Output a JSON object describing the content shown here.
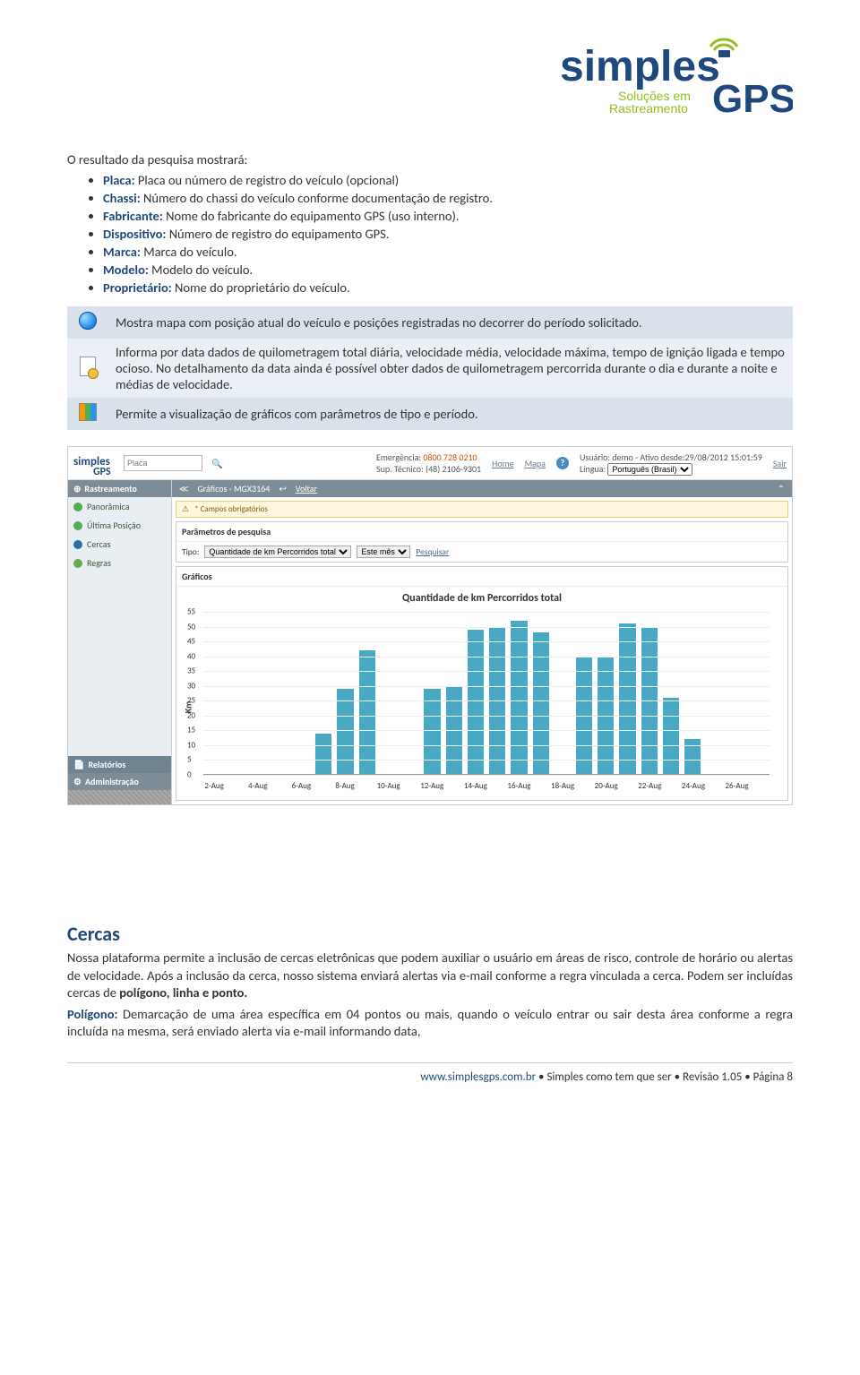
{
  "logo": {
    "brand_main": "simples",
    "brand_sub": "GPS",
    "tagline1": "Soluções em",
    "tagline2": "Rastreamento",
    "color_blue": "#1f497d",
    "color_green": "#93c01f"
  },
  "intro": "O resultado da pesquisa mostrará:",
  "defs": [
    {
      "term": "Placa:",
      "desc": " Placa ou número de registro do veículo (opcional)"
    },
    {
      "term": "Chassi:",
      "desc": " Número do chassi do veículo conforme documentação de registro."
    },
    {
      "term": "Fabricante:",
      "desc": " Nome do fabricante do equipamento GPS (uso interno)."
    },
    {
      "term": "Dispositivo:",
      "desc": " Número de registro do equipamento GPS."
    },
    {
      "term": "Marca:",
      "desc": " Marca do veículo."
    },
    {
      "term": "Modelo:",
      "desc": " Modelo do veículo."
    },
    {
      "term": "Proprietário:",
      "desc": " Nome do proprietário do veículo."
    }
  ],
  "icon_rows": [
    {
      "text": "Mostra mapa com posição atual do veículo e posições registradas no decorrer do período solicitado."
    },
    {
      "text": "Informa por data dados de quilometragem total diária, velocidade média, velocidade máxima, tempo de ignição ligada e tempo ocioso. No detalhamento da data ainda é possível obter dados de quilometragem percorrida durante o dia e durante a noite e médias de velocidade."
    },
    {
      "text": "Permite a visualização de gráficos com parâmetros de tipo e período."
    }
  ],
  "app": {
    "search_placeholder": "Placa",
    "emerg_label": "Emergência:",
    "emerg_phone": "0800 728 0210",
    "sup_label": "Sup. Técnico:",
    "sup_phone": "(48) 2106-9301",
    "nav_home": "Home",
    "nav_mapa": "Mapa",
    "user_label": "Usuário:",
    "user_value": "demo - Ativo desde:29/08/2012 15:01:59",
    "lang_label": "Língua:",
    "lang_value": "Português (Brasil)",
    "exit": "Sair",
    "sidebar": {
      "header": "Rastreamento",
      "items": [
        {
          "label": "Panorâmica",
          "dot": "#4caf50"
        },
        {
          "label": "Última Posição",
          "dot": "#4caf50"
        },
        {
          "label": "Cercas",
          "dot": "#2b6ea3"
        },
        {
          "label": "Regras",
          "dot": "#6aa84f"
        }
      ],
      "foot1": "Relatórios",
      "foot2": "Administração"
    },
    "crumb_title": "Gráficos - MGX3164",
    "crumb_back": "Voltar",
    "warn_text": "* Campos obrigatórios",
    "param_title": "Parâmetros de pesquisa",
    "param_tipo_label": "Tipo:",
    "param_tipo_value": "Quantidade de km Percorridos total",
    "param_periodo_value": "Este mês",
    "param_pesquisar": "Pesquisar",
    "chart_box_title": "Gráficos",
    "chart": {
      "title": "Quantidade de km Percorridos total",
      "ylabel": "Km",
      "ymax": 55,
      "ytick_step": 5,
      "bar_color": "#4aa9c2",
      "grid_color": "#eeeeee",
      "background_color": "#ffffff",
      "categories": [
        "2-Aug",
        "4-Aug",
        "6-Aug",
        "8-Aug",
        "10-Aug",
        "12-Aug",
        "14-Aug",
        "16-Aug",
        "18-Aug",
        "20-Aug",
        "22-Aug",
        "24-Aug",
        "26-Aug"
      ],
      "values": [
        0,
        0,
        0,
        0,
        0,
        14,
        29,
        42,
        0,
        0,
        29,
        30,
        49,
        50,
        52,
        48,
        0,
        40,
        40,
        51,
        50,
        26,
        12,
        0,
        0,
        0
      ],
      "xtick_positions": [
        0,
        2,
        4,
        6,
        8,
        10,
        12,
        14,
        16,
        18,
        20,
        22,
        24
      ]
    }
  },
  "cercas": {
    "heading": "Cercas",
    "p1": "Nossa plataforma permite a inclusão de cercas eletrônicas que podem auxiliar o usuário em áreas de risco, controle de horário ou alertas de velocidade. Após a inclusão da cerca, nosso sistema enviará alertas via e-mail conforme a regra vinculada a cerca. Podem ser incluídas cercas de ",
    "p1_bold": "polígono, linha e ponto.",
    "p2_term": "Polígono:",
    "p2_rest": " Demarcação de uma área específica em 04 pontos ou mais, quando o veículo entrar ou sair desta área conforme a regra incluída na mesma, será enviado alerta via e-mail informando data,"
  },
  "footer": {
    "url": "www.simplesgps.com.br",
    "text": " • Simples como tem que ser • Revisão 1.05 • Página 8"
  }
}
